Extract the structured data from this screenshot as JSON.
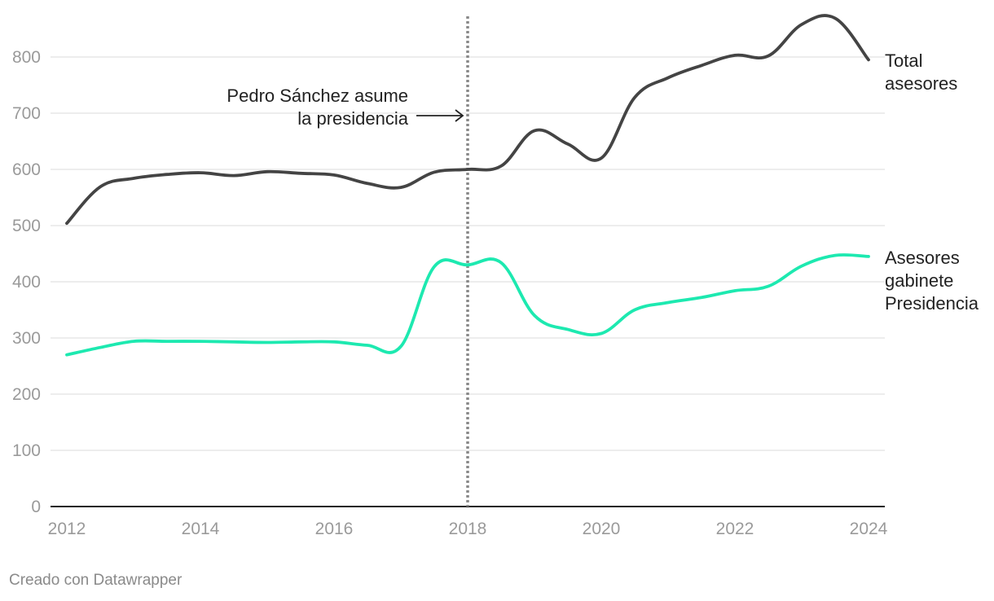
{
  "chart_data": {
    "type": "line",
    "x_ticks": [
      "2012",
      "2014",
      "2016",
      "2018",
      "2020",
      "2022",
      "2024"
    ],
    "y_ticks": [
      "0",
      "100",
      "200",
      "300",
      "400",
      "500",
      "600",
      "700",
      "800"
    ],
    "xlim": [
      2012,
      2024
    ],
    "ylim": [
      0,
      800
    ],
    "grid": true,
    "series": [
      {
        "name": "Total asesores",
        "label_lines": [
          "Total",
          "asesores"
        ],
        "color": "#444444",
        "x": [
          2012.0,
          2012.5,
          2013.0,
          2013.5,
          2014.0,
          2014.5,
          2015.0,
          2015.5,
          2016.0,
          2016.5,
          2017.0,
          2017.5,
          2018.0,
          2018.5,
          2019.0,
          2019.5,
          2020.0,
          2020.5,
          2021.0,
          2021.5,
          2022.0,
          2022.5,
          2023.0,
          2023.5,
          2024.0
        ],
        "values": [
          504,
          569,
          584,
          591,
          594,
          589,
          596,
          593,
          590,
          575,
          568,
          595,
          600,
          606,
          669,
          645,
          620,
          728,
          763,
          785,
          803,
          802,
          858,
          869,
          795
        ]
      },
      {
        "name": "Asesores gabinete Presidencia",
        "label_lines": [
          "Asesores",
          "gabinete",
          "Presidencia"
        ],
        "color": "#1de9b0",
        "x": [
          2012.0,
          2012.5,
          2013.0,
          2013.5,
          2014.0,
          2014.5,
          2015.0,
          2015.5,
          2016.0,
          2016.5,
          2017.0,
          2017.5,
          2018.0,
          2018.5,
          2019.0,
          2019.5,
          2020.0,
          2020.5,
          2021.0,
          2021.5,
          2022.0,
          2022.5,
          2023.0,
          2023.5,
          2024.0
        ],
        "values": [
          270,
          283,
          294,
          294,
          294,
          293,
          292,
          293,
          293,
          287,
          285,
          427,
          430,
          434,
          340,
          315,
          308,
          350,
          363,
          372,
          384,
          392,
          428,
          447,
          445
        ]
      }
    ],
    "annotation": {
      "lines": [
        "Pedro Sánchez asume",
        "la presidencia"
      ],
      "x": 2018.0
    }
  },
  "credit": "Creado con Datawrapper"
}
